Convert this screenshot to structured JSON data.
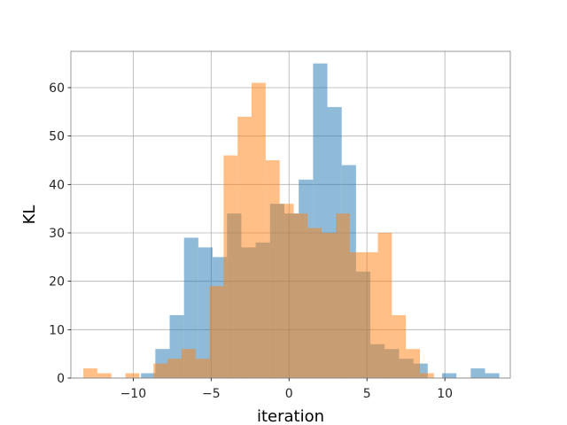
{
  "chart_data": {
    "type": "bar",
    "subtype": "overlaid-histogram",
    "title": "",
    "xlabel": "iteration",
    "ylabel": "KL",
    "xlim": [
      -14.0,
      14.2
    ],
    "ylim": [
      0,
      67.5
    ],
    "grid": true,
    "legend": "none",
    "xticks": [
      -10,
      -5,
      0,
      5,
      10
    ],
    "xtick_labels": [
      "−10",
      "−5",
      "0",
      "5",
      "10"
    ],
    "yticks": [
      0,
      10,
      20,
      30,
      40,
      50,
      60
    ],
    "yticks_labels": [
      "0",
      "10",
      "20",
      "30",
      "40",
      "50",
      "60"
    ],
    "series": [
      {
        "color": "#1f77b4",
        "opacity": 0.5,
        "bin_edges": [
          -9.5,
          -8.58,
          -7.66,
          -6.74,
          -5.82,
          -4.9,
          -3.98,
          -3.06,
          -2.14,
          -1.22,
          -0.3,
          0.62,
          1.54,
          2.46,
          3.38,
          4.3,
          5.22,
          6.14,
          7.06,
          7.98,
          8.9,
          9.82,
          10.74,
          11.66,
          12.58,
          13.5
        ],
        "counts": [
          1,
          6,
          13,
          29,
          27,
          25,
          34,
          27,
          28,
          36,
          34,
          41,
          65,
          56,
          44,
          22,
          7,
          6,
          4,
          3,
          0,
          1,
          0,
          2,
          1
        ]
      },
      {
        "color": "#ff7f0e",
        "opacity": 0.5,
        "bin_edges": [
          -13.2,
          -12.3,
          -11.4,
          -10.5,
          -9.6,
          -8.7,
          -7.8,
          -6.9,
          -6.0,
          -5.1,
          -4.2,
          -3.3,
          -2.4,
          -1.5,
          -0.6,
          0.3,
          1.2,
          2.1,
          3.0,
          3.9,
          4.8,
          5.7,
          6.6,
          7.5,
          8.4,
          9.3
        ],
        "counts": [
          2,
          1,
          0,
          1,
          0,
          3,
          4,
          6,
          4,
          19,
          46,
          54,
          61,
          45,
          36,
          34,
          31,
          30,
          34,
          26,
          26,
          30,
          13,
          6,
          1
        ]
      }
    ]
  }
}
